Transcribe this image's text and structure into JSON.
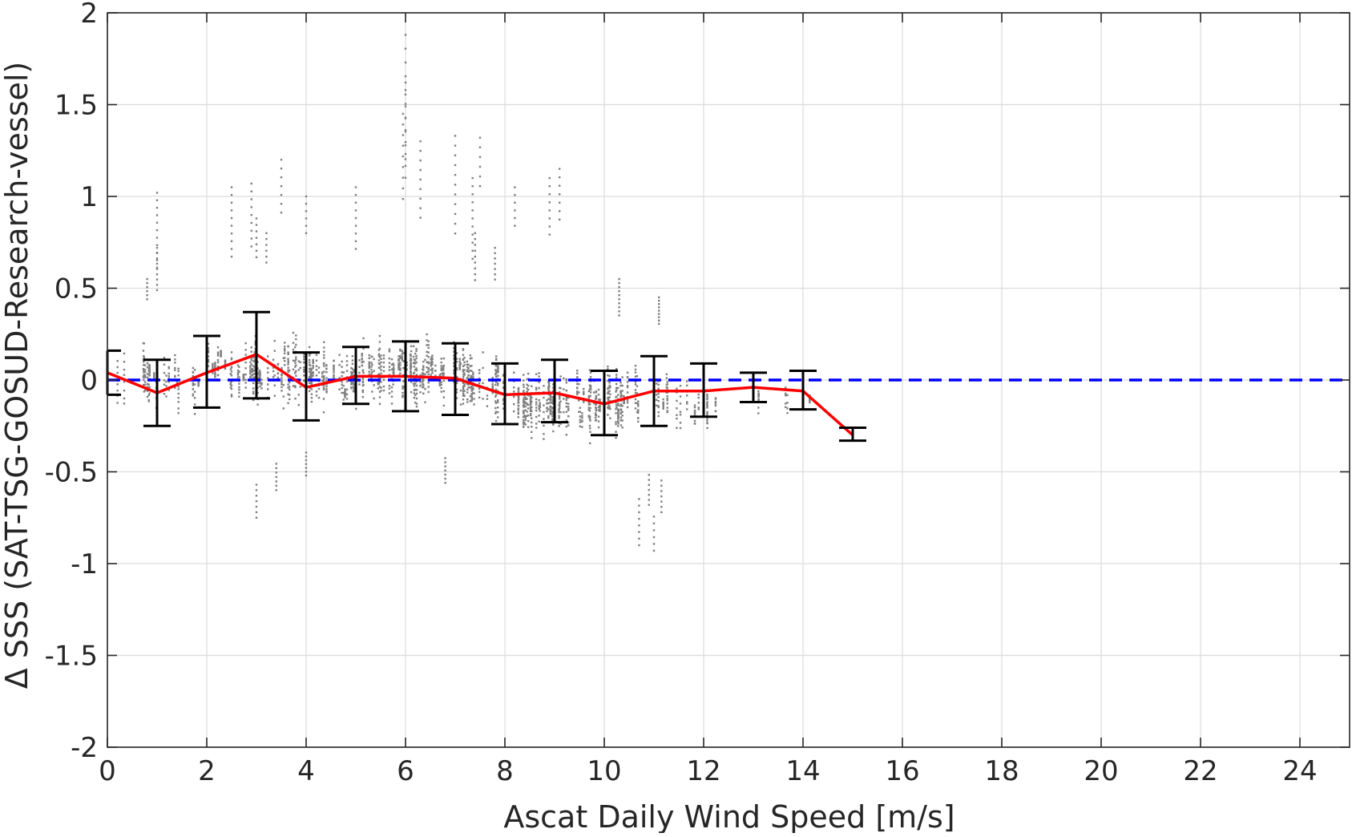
{
  "chart_data": {
    "type": "scatter",
    "title": "",
    "xlabel": "Ascat Daily Wind Speed [m/s]",
    "ylabel": "Δ SSS (SAT-TSG-GOSUD-Research-vessel)",
    "xlim": [
      0,
      25
    ],
    "ylim": [
      -2,
      2
    ],
    "grid": true,
    "legend": "none",
    "x_ticks": [
      "0",
      "2",
      "4",
      "6",
      "8",
      "10",
      "12",
      "14",
      "16",
      "18",
      "20",
      "22",
      "24"
    ],
    "y_ticks": [
      "2",
      "1.5",
      "1",
      "0.5",
      "0",
      "-0.5",
      "-1",
      "-1.5",
      "-2"
    ],
    "colors": {
      "scatter": "#808080",
      "mean_line": "#ff0000",
      "error_bars": "#000000",
      "zero_line": "#0000ff",
      "grid": "#dcdcdc"
    },
    "series": [
      {
        "type": "scatter-cloud",
        "bins": [
          {
            "x_start": 0.2,
            "x_end": 1.0,
            "y_low": -0.22,
            "y_high": 0.33,
            "density": 0.35
          },
          {
            "x_start": 0.8,
            "x_end": 2.0,
            "y_low": -0.27,
            "y_high": 0.25,
            "density": 0.45
          },
          {
            "x_start": 2.0,
            "x_end": 3.0,
            "y_low": -0.18,
            "y_high": 0.3,
            "density": 0.7
          },
          {
            "x_start": 3.0,
            "x_end": 4.0,
            "y_low": -0.28,
            "y_high": 0.35,
            "density": 0.85
          },
          {
            "x_start": 4.0,
            "x_end": 5.0,
            "y_low": -0.25,
            "y_high": 0.28,
            "density": 1.0
          },
          {
            "x_start": 5.0,
            "x_end": 6.0,
            "y_low": -0.22,
            "y_high": 0.32,
            "density": 1.0
          },
          {
            "x_start": 6.0,
            "x_end": 7.0,
            "y_low": -0.25,
            "y_high": 0.34,
            "density": 1.0
          },
          {
            "x_start": 7.0,
            "x_end": 8.0,
            "y_low": -0.32,
            "y_high": 0.28,
            "density": 1.0
          },
          {
            "x_start": 8.0,
            "x_end": 9.0,
            "y_low": -0.42,
            "y_high": 0.18,
            "density": 0.95
          },
          {
            "x_start": 9.0,
            "x_end": 10.0,
            "y_low": -0.42,
            "y_high": 0.18,
            "density": 0.85
          },
          {
            "x_start": 10.0,
            "x_end": 11.0,
            "y_low": -0.4,
            "y_high": 0.14,
            "density": 0.7
          },
          {
            "x_start": 11.0,
            "x_end": 12.0,
            "y_low": -0.38,
            "y_high": 0.14,
            "density": 0.4
          },
          {
            "x_start": 12.0,
            "x_end": 13.5,
            "y_low": -0.3,
            "y_high": 0.05,
            "density": 0.12
          },
          {
            "x_start": 13.5,
            "x_end": 15.0,
            "y_low": -0.25,
            "y_high": 0.1,
            "density": 0.07
          }
        ],
        "outliers": [
          [
            6.0,
            1.88
          ],
          [
            6.0,
            1.62
          ],
          [
            5.95,
            1.45
          ],
          [
            6.3,
            1.3
          ],
          [
            7.0,
            1.33
          ],
          [
            7.5,
            1.32
          ],
          [
            3.5,
            1.2
          ],
          [
            9.1,
            1.15
          ],
          [
            8.9,
            1.1
          ],
          [
            7.35,
            1.1
          ],
          [
            1.0,
            1.02
          ],
          [
            2.5,
            1.05
          ],
          [
            2.9,
            1.07
          ],
          [
            5.0,
            1.05
          ],
          [
            1.0,
            0.72
          ],
          [
            0.8,
            0.55
          ],
          [
            3.0,
            0.88
          ],
          [
            3.2,
            0.8
          ],
          [
            4.0,
            1.0
          ],
          [
            7.4,
            0.8
          ],
          [
            7.8,
            0.72
          ],
          [
            8.2,
            1.05
          ],
          [
            10.3,
            0.55
          ],
          [
            11.1,
            0.45
          ],
          [
            3.4,
            -0.6
          ],
          [
            3.0,
            -0.75
          ],
          [
            4.0,
            -0.52
          ],
          [
            6.8,
            -0.56
          ],
          [
            10.7,
            -0.9
          ],
          [
            10.9,
            -0.68
          ],
          [
            11.0,
            -0.93
          ],
          [
            11.15,
            -0.72
          ]
        ]
      },
      {
        "name": "",
        "type": "line",
        "x": [
          0,
          1,
          2,
          3,
          4,
          5,
          6,
          7,
          8,
          9,
          10,
          11,
          12,
          13,
          14,
          15
        ],
        "y": [
          0.04,
          -0.07,
          0.04,
          0.14,
          -0.04,
          0.02,
          0.02,
          0.01,
          -0.08,
          -0.07,
          -0.13,
          -0.06,
          -0.06,
          -0.04,
          -0.06,
          -0.3
        ],
        "err_low": [
          -0.08,
          -0.25,
          -0.15,
          -0.1,
          -0.22,
          -0.13,
          -0.17,
          -0.19,
          -0.24,
          -0.23,
          -0.3,
          -0.25,
          -0.2,
          -0.12,
          -0.16,
          -0.33
        ],
        "err_high": [
          0.16,
          0.11,
          0.24,
          0.37,
          0.15,
          0.18,
          0.21,
          0.2,
          0.09,
          0.11,
          0.05,
          0.13,
          0.09,
          0.04,
          0.05,
          -0.26
        ]
      },
      {
        "name": "",
        "type": "reference-line",
        "y": 0,
        "style": "dashed"
      }
    ]
  }
}
